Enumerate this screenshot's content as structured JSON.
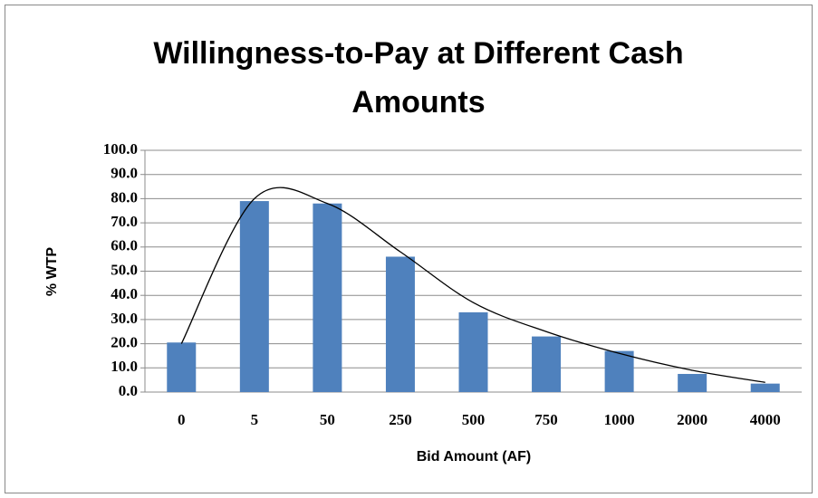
{
  "chart_data": {
    "type": "bar",
    "title": "Willingness-to-Pay at Different Cash Amounts",
    "x_label": "Bid Amount (AF)",
    "y_label": "% WTP",
    "categories": [
      "0",
      "5",
      "50",
      "250",
      "500",
      "750",
      "1000",
      "2000",
      "4000"
    ],
    "values": [
      20.5,
      79,
      78,
      56,
      33,
      23,
      17,
      7.5,
      3.5
    ],
    "color": "#4f81bd",
    "trend": {
      "color": "#000000",
      "values": [
        20,
        80,
        78,
        58,
        37,
        25,
        16,
        9,
        4
      ]
    },
    "ylim": [
      0,
      100
    ],
    "yticks": [
      {
        "value": 0,
        "label": "0.0"
      },
      {
        "value": 10,
        "label": "10.0"
      },
      {
        "value": 20,
        "label": "20.0"
      },
      {
        "value": 30,
        "label": "30.0"
      },
      {
        "value": 40,
        "label": "40.0"
      },
      {
        "value": 50,
        "label": "50.0"
      },
      {
        "value": 60,
        "label": "60.0"
      },
      {
        "value": 70,
        "label": "70.0"
      },
      {
        "value": 80,
        "label": "80.0"
      },
      {
        "value": 90,
        "label": "90.0"
      },
      {
        "value": 100,
        "label": "100.0"
      }
    ],
    "grid": true
  }
}
